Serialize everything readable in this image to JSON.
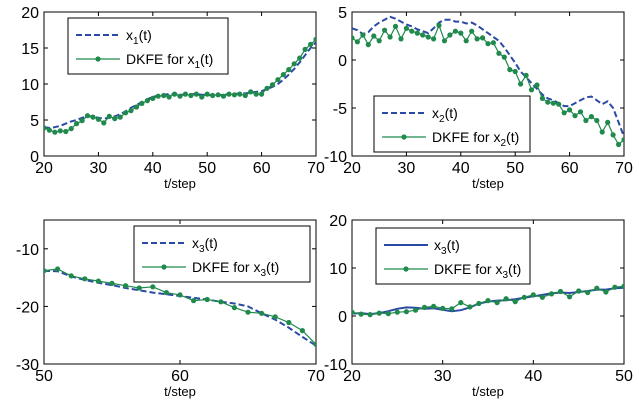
{
  "colors": {
    "true_series": "#2b4aa5",
    "estimate_series": "#1f8a4c"
  },
  "chart_data": [
    {
      "type": "line",
      "xlim": [
        20,
        70
      ],
      "ylim": [
        0,
        20
      ],
      "xticks": [
        20,
        30,
        40,
        50,
        60,
        70
      ],
      "yticks": [
        0,
        5,
        10,
        15,
        20
      ],
      "xlabel": "t/step",
      "legend_position": "top-left",
      "true_style": "dashed",
      "series": [
        {
          "name": "x1(t)",
          "legend_base": "x",
          "legend_sub": "1",
          "legend_tail": "(t)",
          "role": "true",
          "x": [
            20,
            21,
            22,
            23,
            24,
            25,
            26,
            27,
            28,
            29,
            30,
            31,
            32,
            33,
            34,
            35,
            36,
            37,
            38,
            39,
            40,
            41,
            42,
            43,
            44,
            45,
            46,
            47,
            48,
            49,
            50,
            51,
            52,
            53,
            54,
            55,
            56,
            57,
            58,
            59,
            60,
            61,
            62,
            63,
            64,
            65,
            66,
            67,
            68,
            69,
            70
          ],
          "y": [
            4.0,
            3.9,
            4.0,
            4.2,
            4.5,
            4.8,
            5.0,
            5.3,
            5.5,
            5.5,
            5.3,
            5.2,
            5.3,
            5.5,
            5.8,
            6.2,
            6.7,
            7.1,
            7.5,
            7.9,
            8.2,
            8.4,
            8.5,
            8.6,
            8.6,
            8.5,
            8.5,
            8.6,
            8.6,
            8.5,
            8.5,
            8.4,
            8.4,
            8.5,
            8.6,
            8.6,
            8.7,
            8.7,
            8.8,
            8.9,
            9.0,
            9.3,
            9.6,
            10.0,
            10.6,
            11.3,
            12.1,
            13.0,
            14.0,
            15.0,
            15.8
          ]
        },
        {
          "name": "DKFE for x1(t)",
          "legend_base": "DKFE for x",
          "legend_sub": "1",
          "legend_tail": "(t)",
          "role": "estimate",
          "x": [
            20,
            21,
            22,
            23,
            24,
            25,
            26,
            27,
            28,
            29,
            30,
            31,
            32,
            33,
            34,
            35,
            36,
            37,
            38,
            39,
            40,
            41,
            42,
            43,
            44,
            45,
            46,
            47,
            48,
            49,
            50,
            51,
            52,
            53,
            54,
            55,
            56,
            57,
            58,
            59,
            60,
            61,
            62,
            63,
            64,
            65,
            66,
            67,
            68,
            69,
            70
          ],
          "y": [
            3.9,
            3.6,
            3.3,
            3.5,
            3.4,
            3.8,
            4.5,
            4.9,
            5.6,
            5.4,
            5.1,
            4.6,
            5.5,
            5.2,
            5.4,
            6.0,
            6.3,
            6.8,
            7.3,
            7.7,
            8.0,
            8.3,
            8.4,
            8.2,
            8.6,
            8.3,
            8.6,
            8.4,
            8.6,
            8.2,
            8.6,
            8.4,
            8.5,
            8.3,
            8.6,
            8.5,
            8.6,
            8.4,
            8.9,
            8.6,
            8.6,
            9.4,
            9.9,
            10.6,
            11.3,
            12.0,
            12.8,
            13.6,
            14.8,
            15.5,
            16.2
          ]
        }
      ]
    },
    {
      "type": "line",
      "xlim": [
        20,
        70
      ],
      "ylim": [
        -10,
        5
      ],
      "xticks": [
        20,
        30,
        40,
        50,
        60,
        70
      ],
      "yticks": [
        -10,
        -5,
        0,
        5
      ],
      "xlabel": "t/step",
      "legend_position": "bottom-left",
      "true_style": "dashed",
      "series": [
        {
          "name": "x2(t)",
          "legend_base": "x",
          "legend_sub": "2",
          "legend_tail": "(t)",
          "role": "true",
          "x": [
            20,
            21,
            22,
            23,
            24,
            25,
            26,
            27,
            28,
            29,
            30,
            31,
            32,
            33,
            34,
            35,
            36,
            37,
            38,
            39,
            40,
            41,
            42,
            43,
            44,
            45,
            46,
            47,
            48,
            49,
            50,
            51,
            52,
            53,
            54,
            55,
            56,
            57,
            58,
            59,
            60,
            61,
            62,
            63,
            64,
            65,
            66,
            67,
            68,
            69,
            70
          ],
          "y": [
            3.3,
            3.1,
            2.7,
            2.9,
            3.5,
            3.9,
            4.2,
            4.5,
            4.3,
            4.0,
            3.7,
            3.5,
            3.2,
            3.0,
            2.8,
            3.3,
            3.9,
            4.2,
            4.2,
            4.0,
            4.0,
            3.8,
            3.9,
            3.6,
            3.2,
            2.8,
            2.4,
            2.0,
            1.3,
            0.5,
            -0.3,
            -1.2,
            -1.8,
            -2.4,
            -3.0,
            -3.6,
            -4.0,
            -4.2,
            -4.5,
            -4.8,
            -4.8,
            -4.5,
            -4.2,
            -3.9,
            -3.8,
            -4.2,
            -4.6,
            -4.3,
            -5.0,
            -6.5,
            -8.0
          ]
        },
        {
          "name": "DKFE for x2(t)",
          "legend_base": "DKFE for x",
          "legend_sub": "2",
          "legend_tail": "(t)",
          "role": "estimate",
          "x": [
            20,
            21,
            22,
            23,
            24,
            25,
            26,
            27,
            28,
            29,
            30,
            31,
            32,
            33,
            34,
            35,
            36,
            37,
            38,
            39,
            40,
            41,
            42,
            43,
            44,
            45,
            46,
            47,
            48,
            49,
            50,
            51,
            52,
            53,
            54,
            55,
            56,
            57,
            58,
            59,
            60,
            61,
            62,
            63,
            64,
            65,
            66,
            67,
            68,
            69,
            70
          ],
          "y": [
            2.3,
            1.9,
            2.6,
            1.6,
            2.5,
            2.0,
            3.1,
            2.4,
            3.5,
            2.2,
            3.3,
            3.0,
            2.8,
            2.6,
            2.4,
            2.2,
            3.6,
            2.0,
            2.6,
            3.0,
            2.8,
            2.0,
            3.0,
            2.2,
            2.3,
            1.7,
            1.8,
            0.7,
            0.3,
            -1.0,
            -1.2,
            -2.5,
            -1.6,
            -3.1,
            -2.6,
            -4.0,
            -4.4,
            -4.5,
            -4.6,
            -5.5,
            -5.2,
            -5.8,
            -5.4,
            -6.3,
            -5.9,
            -6.3,
            -7.5,
            -6.5,
            -7.8,
            -8.8,
            -8.3
          ]
        }
      ]
    },
    {
      "type": "line",
      "xlim": [
        50,
        70
      ],
      "ylim": [
        -30,
        -5
      ],
      "xticks": [
        50,
        60,
        70
      ],
      "yticks": [
        -10,
        -20,
        -30
      ],
      "xlabel": "t/step",
      "legend_position": "top-right",
      "true_style": "dashed",
      "series": [
        {
          "name": "x3(t)",
          "legend_base": "x",
          "legend_sub": "3",
          "legend_tail": "(t)",
          "role": "true",
          "x": [
            50,
            51,
            52,
            53,
            54,
            55,
            56,
            57,
            58,
            59,
            60,
            61,
            62,
            63,
            64,
            65,
            66,
            67,
            68,
            69,
            70
          ],
          "y": [
            -13.8,
            -13.9,
            -14.8,
            -15.4,
            -15.9,
            -16.3,
            -16.8,
            -17.2,
            -17.6,
            -17.9,
            -18.2,
            -18.5,
            -18.8,
            -19.2,
            -19.5,
            -20.0,
            -21.2,
            -22.3,
            -23.7,
            -25.3,
            -26.8
          ]
        },
        {
          "name": "DKFE for x3(t)",
          "legend_base": "DKFE for x",
          "legend_sub": "3",
          "legend_tail": "(t)",
          "role": "estimate",
          "x": [
            50,
            51,
            52,
            53,
            54,
            55,
            56,
            57,
            58,
            59,
            60,
            61,
            62,
            63,
            64,
            65,
            66,
            67,
            68,
            69,
            70
          ],
          "y": [
            -13.8,
            -13.5,
            -14.7,
            -15.2,
            -15.6,
            -16.0,
            -16.4,
            -16.8,
            -16.6,
            -17.6,
            -18.0,
            -19.0,
            -18.8,
            -19.2,
            -20.2,
            -21.0,
            -21.2,
            -21.8,
            -22.8,
            -24.2,
            -26.6
          ]
        }
      ]
    },
    {
      "type": "line",
      "xlim": [
        20,
        50
      ],
      "ylim": [
        -10,
        20
      ],
      "xticks": [
        20,
        30,
        40,
        50
      ],
      "yticks": [
        -10,
        0,
        10,
        20
      ],
      "xlabel": "t/step",
      "legend_position": "top-left",
      "true_style": "solid",
      "series": [
        {
          "name": "x3(t)",
          "legend_base": "x",
          "legend_sub": "3",
          "legend_tail": "(t)",
          "role": "true",
          "x": [
            20,
            21,
            22,
            23,
            24,
            25,
            26,
            27,
            28,
            29,
            30,
            31,
            32,
            33,
            34,
            35,
            36,
            37,
            38,
            39,
            40,
            41,
            42,
            43,
            44,
            45,
            46,
            47,
            48,
            49,
            50
          ],
          "y": [
            0.5,
            0.6,
            0.4,
            0.6,
            1.0,
            1.5,
            1.8,
            1.7,
            1.5,
            1.6,
            1.3,
            1.0,
            1.2,
            1.8,
            2.6,
            3.0,
            3.2,
            3.3,
            3.5,
            3.8,
            4.1,
            4.4,
            4.7,
            4.9,
            4.8,
            5.0,
            5.2,
            5.5,
            5.5,
            5.8,
            5.9
          ]
        },
        {
          "name": "DKFE for x3(t)",
          "legend_base": "DKFE for x",
          "legend_sub": "3",
          "legend_tail": "(t)",
          "role": "estimate",
          "x": [
            20,
            21,
            22,
            23,
            24,
            25,
            26,
            27,
            28,
            29,
            30,
            31,
            32,
            33,
            34,
            35,
            36,
            37,
            38,
            39,
            40,
            41,
            42,
            43,
            44,
            45,
            46,
            47,
            48,
            49,
            50
          ],
          "y": [
            0.8,
            0.4,
            0.3,
            0.6,
            0.5,
            0.8,
            0.9,
            1.2,
            1.8,
            2.0,
            1.6,
            1.5,
            2.8,
            1.9,
            2.6,
            3.2,
            2.8,
            3.6,
            3.0,
            3.9,
            4.4,
            3.9,
            4.6,
            5.1,
            4.0,
            5.2,
            4.9,
            5.8,
            5.0,
            6.0,
            6.2
          ]
        }
      ]
    }
  ]
}
